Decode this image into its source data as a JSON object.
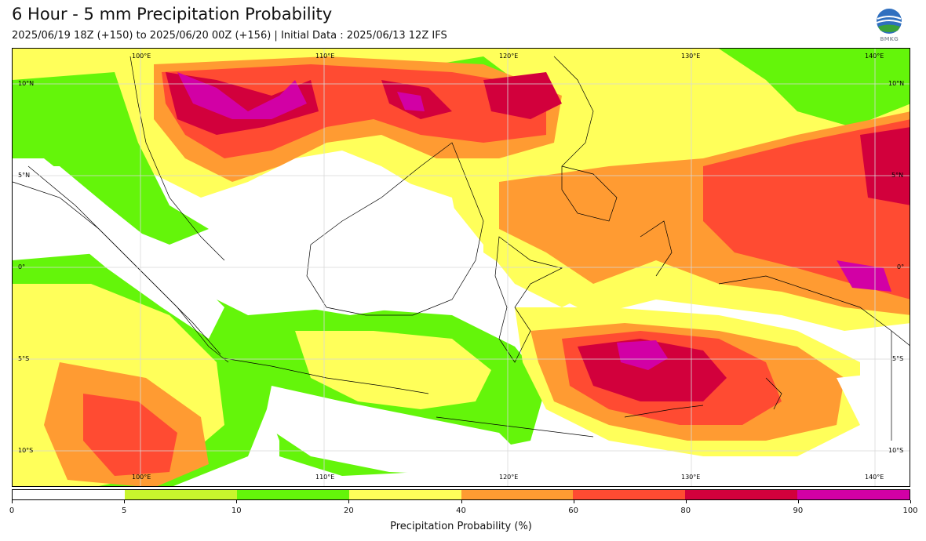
{
  "header": {
    "title": "6 Hour - 5 mm Precipitation Probability",
    "subtitle": "2025/06/19 18Z (+150) to 2025/06/20 00Z (+156) | Initial Data : 2025/06/13 12Z IFS",
    "logo_text": "BMKG"
  },
  "map": {
    "lon_labels": [
      "100°E",
      "110°E",
      "120°E",
      "130°E",
      "140°E"
    ],
    "lat_labels": [
      "10°N",
      "5°N",
      "0°",
      "5°S",
      "10°S"
    ],
    "extent_lon": [
      94,
      143
    ],
    "extent_lat": [
      -12,
      12
    ]
  },
  "colorbar": {
    "label": "Precipitation Probability (%)",
    "ticks": [
      "0",
      "5",
      "10",
      "20",
      "40",
      "60",
      "80",
      "90",
      "100"
    ],
    "colors": [
      "#ffffff",
      "#c8f52d",
      "#64f50a",
      "#ffff5a",
      "#ff9b32",
      "#ff4b32",
      "#d2003c",
      "#d200a5"
    ]
  }
}
